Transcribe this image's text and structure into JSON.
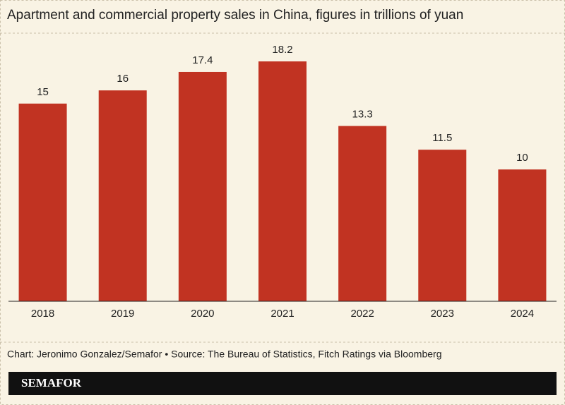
{
  "chart_data": {
    "type": "bar",
    "title": "Apartment and commercial property sales in China, figures in trillions of yuan",
    "categories": [
      "2018",
      "2019",
      "2020",
      "2021",
      "2022",
      "2023",
      "2024"
    ],
    "values": [
      15,
      16,
      17.4,
      18.2,
      13.3,
      11.5,
      10
    ],
    "color": "#c13322",
    "source": "Chart: Jeronimo Gonzalez/Semafor • Source: The Bureau of Statistics, Fitch Ratings via Bloomberg",
    "brand": "SEMAFOR"
  }
}
